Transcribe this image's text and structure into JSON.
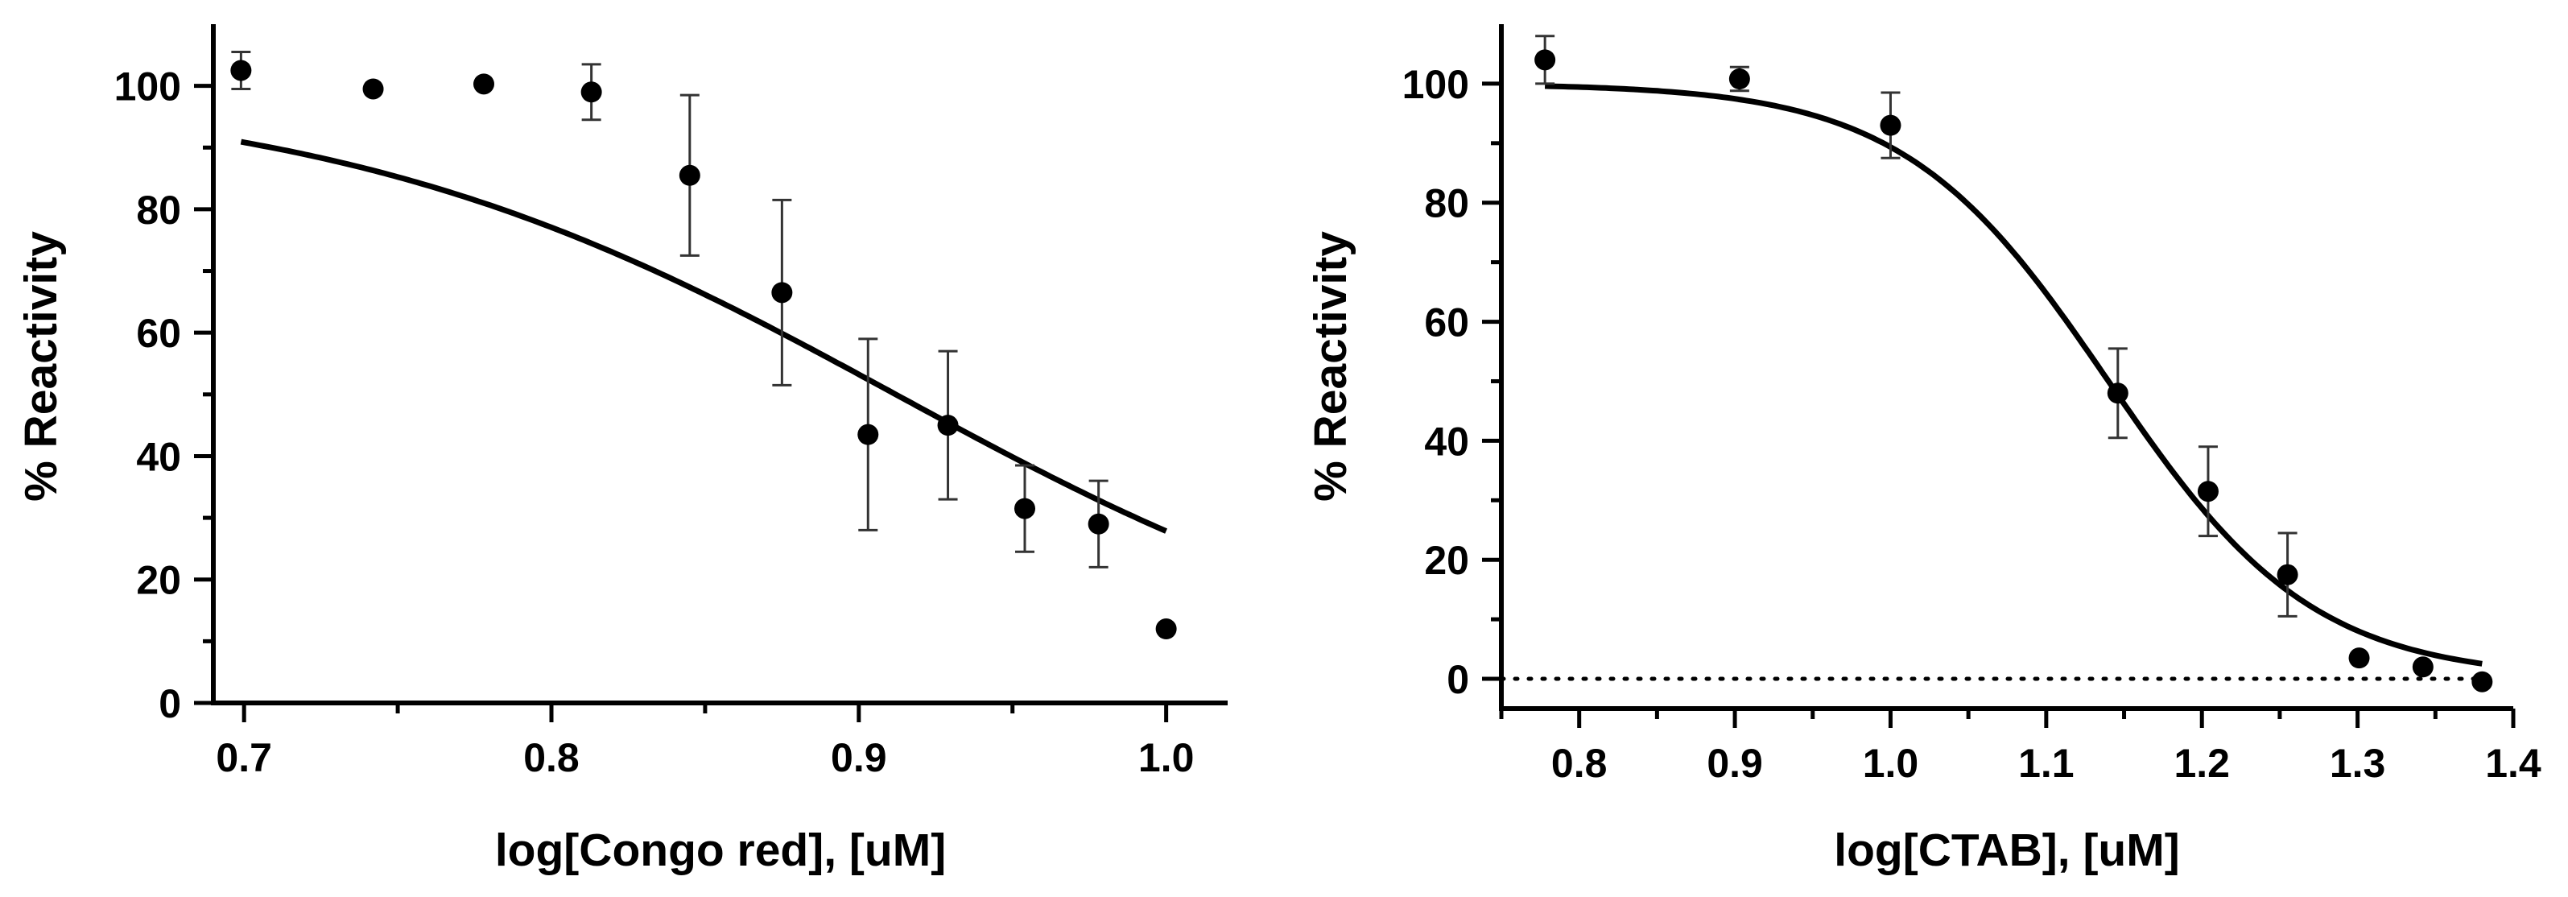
{
  "chart_data": [
    {
      "type": "scatter",
      "title": "",
      "xlabel": "log[Congo red], [uM]",
      "ylabel": "% Reactivity",
      "xlim": [
        0.69,
        1.02
      ],
      "ylim": [
        0,
        110
      ],
      "xticks": [
        0.7,
        0.8,
        0.9,
        1.0
      ],
      "xtick_labels": [
        "0.7",
        "0.8",
        "0.9",
        "1.0"
      ],
      "yticks": [
        0,
        20,
        40,
        60,
        80,
        100
      ],
      "ytick_labels": [
        "0",
        "20",
        "40",
        "60",
        "80",
        "100"
      ],
      "points": [
        {
          "x": 0.699,
          "y": 102.5,
          "err": 3
        },
        {
          "x": 0.742,
          "y": 99.5,
          "err": 0
        },
        {
          "x": 0.778,
          "y": 100.3,
          "err": 0
        },
        {
          "x": 0.813,
          "y": 99.0,
          "err": 4.5
        },
        {
          "x": 0.845,
          "y": 85.5,
          "err": 13
        },
        {
          "x": 0.875,
          "y": 66.5,
          "err": 15
        },
        {
          "x": 0.903,
          "y": 43.5,
          "err": 15.5
        },
        {
          "x": 0.929,
          "y": 45.0,
          "err": 12
        },
        {
          "x": 0.954,
          "y": 31.5,
          "err": 7
        },
        {
          "x": 0.978,
          "y": 29.0,
          "err": 7
        },
        {
          "x": 1.0,
          "y": 12.0,
          "err": 0
        }
      ],
      "fit": {
        "model": "four-parameter logistic",
        "top": 100,
        "bottom": 0,
        "log_ic50": 0.912,
        "hill_slope": -4.7
      },
      "zero_line": false
    },
    {
      "type": "scatter",
      "title": "",
      "xlabel": "log[CTAB], [uM]",
      "ylabel": "% Reactivity",
      "xlim": [
        0.75,
        1.4
      ],
      "ylim": [
        -5,
        110
      ],
      "xticks": [
        0.8,
        0.9,
        1.0,
        1.1,
        1.2,
        1.3,
        1.4
      ],
      "xtick_labels": [
        "0.8",
        "0.9",
        "1.0",
        "1.1",
        "1.2",
        "1.3",
        "1.4"
      ],
      "yticks": [
        0,
        20,
        40,
        60,
        80,
        100
      ],
      "ytick_labels": [
        "0",
        "20",
        "40",
        "60",
        "80",
        "100"
      ],
      "points": [
        {
          "x": 0.778,
          "y": 104.0,
          "err": 4
        },
        {
          "x": 0.903,
          "y": 100.8,
          "err": 2
        },
        {
          "x": 1.0,
          "y": 93.0,
          "err": 5.5
        },
        {
          "x": 1.146,
          "y": 48.0,
          "err": 7.5
        },
        {
          "x": 1.204,
          "y": 31.5,
          "err": 7.5
        },
        {
          "x": 1.255,
          "y": 17.5,
          "err": 7
        },
        {
          "x": 1.301,
          "y": 3.5,
          "err": 0
        },
        {
          "x": 1.342,
          "y": 2.0,
          "err": 0
        },
        {
          "x": 1.38,
          "y": -0.5,
          "err": 0
        }
      ],
      "fit": {
        "model": "four-parameter logistic",
        "top": 100,
        "bottom": 0,
        "log_ic50": 1.14,
        "hill_slope": -6.6
      },
      "zero_line": true
    }
  ]
}
